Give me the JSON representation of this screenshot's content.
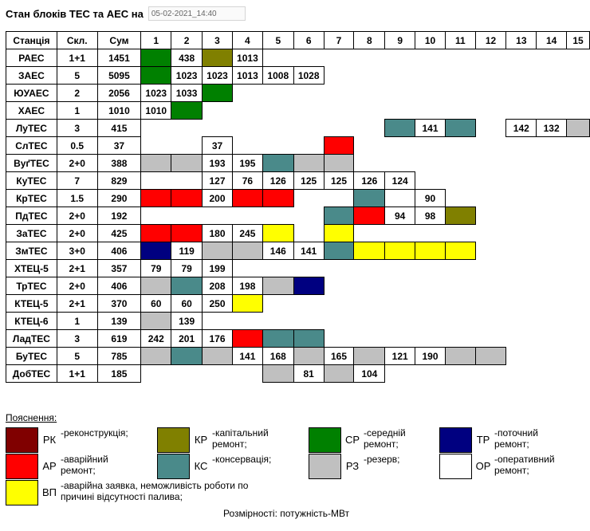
{
  "header": {
    "title": "Стан блоків ТЕС та АЕС на",
    "date_value": "05-02-2021_14:40"
  },
  "table": {
    "columns": [
      "Станція",
      "Скл.",
      "Сум",
      "1",
      "2",
      "3",
      "4",
      "5",
      "6",
      "7",
      "8",
      "9",
      "10",
      "11",
      "12",
      "13",
      "14",
      "15"
    ],
    "rows": [
      {
        "name": "РАЕС",
        "comp": "1+1",
        "sum": "1451",
        "units": [
          [
            "СР",
            ""
          ],
          [
            "ОР",
            "438"
          ],
          [
            "КР",
            ""
          ],
          [
            "ОР",
            "1013"
          ],
          null,
          null,
          null,
          null,
          null,
          null,
          null,
          null,
          null,
          null,
          null
        ]
      },
      {
        "name": "ЗАЕС",
        "comp": "5",
        "sum": "5095",
        "units": [
          [
            "СР",
            ""
          ],
          [
            "ОР",
            "1023"
          ],
          [
            "ОР",
            "1023"
          ],
          [
            "ОР",
            "1013"
          ],
          [
            "ОР",
            "1008"
          ],
          [
            "ОР",
            "1028"
          ],
          null,
          null,
          null,
          null,
          null,
          null,
          null,
          null,
          null
        ]
      },
      {
        "name": "ЮУАЕС",
        "comp": "2",
        "sum": "2056",
        "units": [
          [
            "ОР",
            "1023"
          ],
          [
            "ОР",
            "1033"
          ],
          [
            "СР",
            ""
          ],
          null,
          null,
          null,
          null,
          null,
          null,
          null,
          null,
          null,
          null,
          null,
          null
        ]
      },
      {
        "name": "ХАЕС",
        "comp": "1",
        "sum": "1010",
        "units": [
          [
            "ОР",
            "1010"
          ],
          [
            "СР",
            ""
          ],
          null,
          null,
          null,
          null,
          null,
          null,
          null,
          null,
          null,
          null,
          null,
          null,
          null
        ]
      },
      {
        "name": "ЛуТЕС",
        "comp": "3",
        "sum": "415",
        "units": [
          null,
          null,
          null,
          null,
          null,
          null,
          null,
          null,
          [
            "КС",
            ""
          ],
          [
            "ОР",
            "141"
          ],
          [
            "КС",
            ""
          ],
          null,
          [
            "ОР",
            "142"
          ],
          [
            "ОР",
            "132"
          ],
          [
            "РЗ",
            ""
          ]
        ]
      },
      {
        "name": "СлТЕС",
        "comp": "0.5",
        "sum": "37",
        "units": [
          null,
          null,
          [
            "ОР",
            "37"
          ],
          null,
          null,
          null,
          [
            "АР",
            ""
          ],
          null,
          null,
          null,
          null,
          null,
          null,
          null,
          null
        ]
      },
      {
        "name": "ВуґТЕС",
        "comp": "2+0",
        "sum": "388",
        "units": [
          [
            "РЗ",
            ""
          ],
          [
            "РЗ",
            ""
          ],
          [
            "ОР",
            "193"
          ],
          [
            "ОР",
            "195"
          ],
          [
            "КС",
            ""
          ],
          [
            "РЗ",
            ""
          ],
          [
            "РЗ",
            ""
          ],
          null,
          null,
          null,
          null,
          null,
          null,
          null,
          null
        ]
      },
      {
        "name": "КуТЕС",
        "comp": "7",
        "sum": "829",
        "units": [
          null,
          null,
          [
            "ОР",
            "127"
          ],
          [
            "ОР",
            "76"
          ],
          [
            "ОР",
            "126"
          ],
          [
            "ОР",
            "125"
          ],
          [
            "ОР",
            "125"
          ],
          [
            "ОР",
            "126"
          ],
          [
            "ОР",
            "124"
          ],
          null,
          null,
          null,
          null,
          null,
          null
        ]
      },
      {
        "name": "КрТЕС",
        "comp": "1.5",
        "sum": "290",
        "units": [
          [
            "АР",
            ""
          ],
          [
            "АР",
            ""
          ],
          [
            "ОР",
            "200"
          ],
          [
            "АР",
            ""
          ],
          [
            "АР",
            ""
          ],
          null,
          null,
          [
            "КС",
            ""
          ],
          [
            "ОР",
            ""
          ],
          [
            "ОР",
            "90"
          ],
          null,
          null,
          null,
          null,
          null
        ]
      },
      {
        "name": "ПдТЕС",
        "comp": "2+0",
        "sum": "192",
        "units": [
          null,
          null,
          null,
          null,
          null,
          null,
          [
            "КС",
            ""
          ],
          [
            "АР",
            ""
          ],
          [
            "ОР",
            "94"
          ],
          [
            "ОР",
            "98"
          ],
          [
            "КР",
            ""
          ],
          null,
          null,
          null,
          null
        ]
      },
      {
        "name": "ЗаТЕС",
        "comp": "2+0",
        "sum": "425",
        "units": [
          [
            "АР",
            ""
          ],
          [
            "АР",
            ""
          ],
          [
            "ОР",
            "180"
          ],
          [
            "ОР",
            "245"
          ],
          [
            "ВП",
            ""
          ],
          null,
          [
            "ВП",
            ""
          ],
          null,
          null,
          null,
          null,
          null,
          null,
          null,
          null
        ]
      },
      {
        "name": "ЗмТЕС",
        "comp": "3+0",
        "sum": "406",
        "units": [
          [
            "ТР",
            ""
          ],
          [
            "ОР",
            "119"
          ],
          [
            "РЗ",
            ""
          ],
          [
            "РЗ",
            ""
          ],
          [
            "ОР",
            "146"
          ],
          [
            "ОР",
            "141"
          ],
          [
            "КС",
            ""
          ],
          [
            "ВП",
            ""
          ],
          [
            "ВП",
            ""
          ],
          [
            "ВП",
            ""
          ],
          [
            "ВП",
            ""
          ],
          null,
          null,
          null,
          null
        ]
      },
      {
        "name": "ХТЕЦ-5",
        "comp": "2+1",
        "sum": "357",
        "units": [
          [
            "ОР",
            "79"
          ],
          [
            "ОР",
            "79"
          ],
          [
            "ОР",
            "199"
          ],
          null,
          null,
          null,
          null,
          null,
          null,
          null,
          null,
          null,
          null,
          null,
          null
        ]
      },
      {
        "name": "ТрТЕС",
        "comp": "2+0",
        "sum": "406",
        "units": [
          [
            "РЗ",
            ""
          ],
          [
            "КС",
            ""
          ],
          [
            "ОР",
            "208"
          ],
          [
            "ОР",
            "198"
          ],
          [
            "РЗ",
            ""
          ],
          [
            "ТР",
            ""
          ],
          null,
          null,
          null,
          null,
          null,
          null,
          null,
          null,
          null
        ]
      },
      {
        "name": "КТЕЦ-5",
        "comp": "2+1",
        "sum": "370",
        "units": [
          [
            "ОР",
            "60"
          ],
          [
            "ОР",
            "60"
          ],
          [
            "ОР",
            "250"
          ],
          [
            "ВП",
            ""
          ],
          null,
          null,
          null,
          null,
          null,
          null,
          null,
          null,
          null,
          null,
          null
        ]
      },
      {
        "name": "КТЕЦ-6",
        "comp": "1",
        "sum": "139",
        "units": [
          [
            "РЗ",
            ""
          ],
          [
            "ОР",
            "139"
          ],
          null,
          null,
          null,
          null,
          null,
          null,
          null,
          null,
          null,
          null,
          null,
          null,
          null
        ]
      },
      {
        "name": "ЛадТЕС",
        "comp": "3",
        "sum": "619",
        "units": [
          [
            "ОР",
            "242"
          ],
          [
            "ОР",
            "201"
          ],
          [
            "ОР",
            "176"
          ],
          [
            "АР",
            ""
          ],
          [
            "КС",
            ""
          ],
          [
            "КС",
            ""
          ],
          null,
          null,
          null,
          null,
          null,
          null,
          null,
          null,
          null
        ]
      },
      {
        "name": "БуТЕС",
        "comp": "5",
        "sum": "785",
        "units": [
          [
            "РЗ",
            ""
          ],
          [
            "КС",
            ""
          ],
          [
            "РЗ",
            ""
          ],
          [
            "ОР",
            "141"
          ],
          [
            "ОР",
            "168"
          ],
          [
            "РЗ",
            ""
          ],
          [
            "ОР",
            "165"
          ],
          [
            "РЗ",
            ""
          ],
          [
            "ОР",
            "121"
          ],
          [
            "ОР",
            "190"
          ],
          [
            "РЗ",
            ""
          ],
          [
            "РЗ",
            ""
          ],
          null,
          null,
          null
        ]
      },
      {
        "name": "ДобТЕС",
        "comp": "1+1",
        "sum": "185",
        "units": [
          null,
          null,
          null,
          null,
          [
            "РЗ",
            ""
          ],
          [
            "ОР",
            "81"
          ],
          [
            "РЗ",
            ""
          ],
          [
            "ОР",
            "104"
          ],
          null,
          null,
          null,
          null,
          null,
          null,
          null
        ]
      }
    ]
  },
  "legend": {
    "title": "Пояснення:",
    "items": [
      {
        "code": "РК",
        "color": "#800000",
        "description": "-реконструкція;"
      },
      {
        "code": "КР",
        "color": "#808000",
        "description": "-капітальний\nремонт;"
      },
      {
        "code": "СР",
        "color": "#008000",
        "description": "-середній\nремонт;"
      },
      {
        "code": "ТР",
        "color": "#000080",
        "description": "-поточний\nремонт;"
      },
      {
        "code": "АР",
        "color": "#ff0000",
        "description": "-аварійний\nремонт;"
      },
      {
        "code": "КС",
        "color": "#4a8a8a",
        "description": "-консервація;"
      },
      {
        "code": "РЗ",
        "color": "#c0c0c0",
        "description": "-резерв;"
      },
      {
        "code": "ОР",
        "color": "#ffffff",
        "description": "-оперативний\nремонт;"
      },
      {
        "code": "ВП",
        "color": "#ffff00",
        "description": "-аварійна заявка, неможливість роботи по\nпричині відсутності палива;"
      }
    ]
  },
  "footer": {
    "units": "Розмірності: потужність-МВт"
  }
}
